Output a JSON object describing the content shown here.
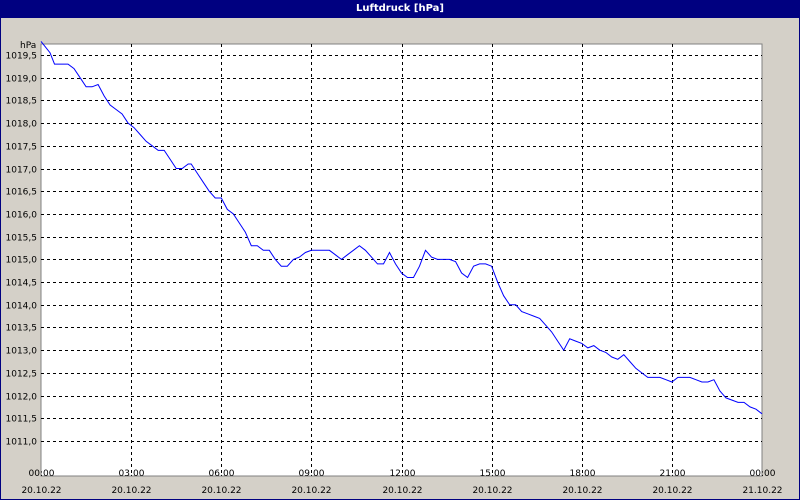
{
  "window": {
    "title": "Luftdruck [hPa]",
    "colors": {
      "titlebar": "#000080",
      "panel": "#d4d0c8",
      "plot_bg": "#ffffff",
      "line": "#0000ff",
      "grid": "#000000"
    }
  },
  "chart_data": {
    "type": "line",
    "title": "Luftdruck [hPa]",
    "ylabel": "hPa",
    "xlabel": "",
    "ylim": [
      1010.75,
      1519.9
    ],
    "grid": true,
    "grid_style": "dashed",
    "y_ticks": [
      "1011,0",
      "1011,5",
      "1012,0",
      "1012,5",
      "1013,0",
      "1013,5",
      "1014,0",
      "1014,5",
      "1015,0",
      "1015,5",
      "1016,0",
      "1016,5",
      "1017,0",
      "1017,5",
      "1018,0",
      "1018,5",
      "1019,0",
      "1019,5"
    ],
    "y_tick_values": [
      1011.0,
      1011.5,
      1012.0,
      1012.5,
      1013.0,
      1013.5,
      1014.0,
      1014.5,
      1015.0,
      1015.5,
      1016.0,
      1016.5,
      1017.0,
      1017.5,
      1018.0,
      1018.5,
      1019.0,
      1019.5
    ],
    "x_ticks": [
      {
        "time": "00:00",
        "date": "20.10.22",
        "hour": 0
      },
      {
        "time": "03:00",
        "date": "20.10.22",
        "hour": 3
      },
      {
        "time": "06:00",
        "date": "20.10.22",
        "hour": 6
      },
      {
        "time": "09:00",
        "date": "20.10.22",
        "hour": 9
      },
      {
        "time": "12:00",
        "date": "20.10.22",
        "hour": 12
      },
      {
        "time": "15:00",
        "date": "20.10.22",
        "hour": 15
      },
      {
        "time": "18:00",
        "date": "20.10.22",
        "hour": 18
      },
      {
        "time": "21:00",
        "date": "20.10.22",
        "hour": 21
      },
      {
        "time": "00:00",
        "date": "21.10.22",
        "hour": 24
      }
    ],
    "series": [
      {
        "color": "#0000ff",
        "x": [
          0,
          0.3,
          0.45,
          0.7,
          0.9,
          1.1,
          1.3,
          1.5,
          1.7,
          1.9,
          2.1,
          2.3,
          2.5,
          2.7,
          2.9,
          3.1,
          3.3,
          3.5,
          3.7,
          3.9,
          4.1,
          4.3,
          4.5,
          4.7,
          4.9,
          5.0,
          5.2,
          5.4,
          5.6,
          5.8,
          6.0,
          6.2,
          6.4,
          6.6,
          6.8,
          7.0,
          7.2,
          7.4,
          7.6,
          7.8,
          8.0,
          8.2,
          8.4,
          8.6,
          8.8,
          9.0,
          9.2,
          9.4,
          9.6,
          9.8,
          10.0,
          10.2,
          10.4,
          10.6,
          10.8,
          11.0,
          11.2,
          11.4,
          11.6,
          11.8,
          12.0,
          12.2,
          12.4,
          12.6,
          12.8,
          13.0,
          13.2,
          13.4,
          13.6,
          13.8,
          14.0,
          14.2,
          14.4,
          14.6,
          14.8,
          15.0,
          15.2,
          15.4,
          15.6,
          15.8,
          16.0,
          16.2,
          16.4,
          16.6,
          16.8,
          17.0,
          17.2,
          17.4,
          17.6,
          17.8,
          18.0,
          18.2,
          18.4,
          18.6,
          18.8,
          19.0,
          19.2,
          19.4,
          19.6,
          19.8,
          20.0,
          20.2,
          20.4,
          20.6,
          20.8,
          21.0,
          21.2,
          21.4,
          21.6,
          21.8,
          22.0,
          22.2,
          22.4,
          22.6,
          22.8,
          23.0,
          23.2,
          23.4,
          23.6,
          23.8,
          24.0
        ],
        "y": [
          1019.8,
          1019.55,
          1019.3,
          1019.3,
          1019.3,
          1019.2,
          1019.0,
          1018.8,
          1018.8,
          1018.85,
          1018.6,
          1018.4,
          1018.3,
          1018.2,
          1018.0,
          1017.9,
          1017.75,
          1017.6,
          1017.5,
          1017.4,
          1017.4,
          1017.2,
          1017.0,
          1017.0,
          1017.1,
          1017.1,
          1016.9,
          1016.7,
          1016.5,
          1016.35,
          1016.35,
          1016.1,
          1016.0,
          1015.8,
          1015.6,
          1015.3,
          1015.3,
          1015.2,
          1015.2,
          1015.0,
          1014.85,
          1014.85,
          1015.0,
          1015.05,
          1015.15,
          1015.2,
          1015.2,
          1015.2,
          1015.2,
          1015.1,
          1015.0,
          1015.1,
          1015.2,
          1015.3,
          1015.2,
          1015.05,
          1014.9,
          1014.9,
          1015.15,
          1014.9,
          1014.7,
          1014.6,
          1014.6,
          1014.85,
          1015.2,
          1015.05,
          1015.0,
          1015.0,
          1015.0,
          1014.95,
          1014.7,
          1014.6,
          1014.85,
          1014.9,
          1014.9,
          1014.85,
          1014.5,
          1014.2,
          1014.0,
          1014.0,
          1013.85,
          1013.8,
          1013.75,
          1013.7,
          1013.55,
          1013.4,
          1013.2,
          1013.0,
          1013.25,
          1013.2,
          1013.15,
          1013.05,
          1013.1,
          1013.0,
          1012.95,
          1012.85,
          1012.8,
          1012.9,
          1012.75,
          1012.6,
          1012.5,
          1012.4,
          1012.4,
          1012.4,
          1012.35,
          1012.3,
          1012.4,
          1012.4,
          1012.4,
          1012.35,
          1012.3,
          1012.3,
          1012.35,
          1012.1,
          1011.95,
          1011.9,
          1011.85,
          1011.85,
          1011.75,
          1011.7,
          1011.6
        ]
      }
    ]
  }
}
